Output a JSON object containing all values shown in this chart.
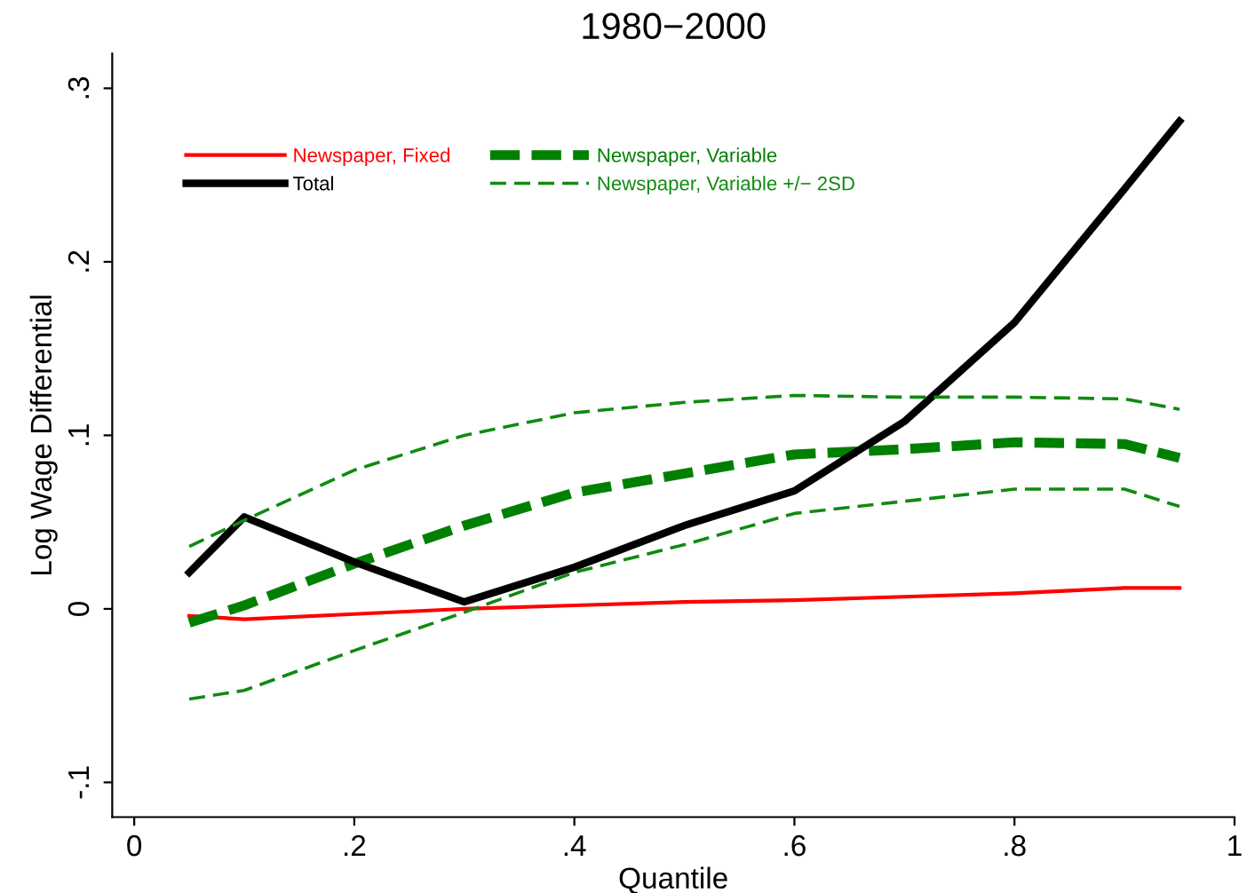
{
  "chart_data": {
    "type": "line",
    "title": "1980−2000",
    "xlabel": "Quantile",
    "ylabel": "Log Wage Differential",
    "x": [
      0.05,
      0.1,
      0.2,
      0.3,
      0.4,
      0.5,
      0.6,
      0.7,
      0.8,
      0.9,
      0.95
    ],
    "series": [
      {
        "name": "Newspaper, Fixed",
        "color": "#ff0000",
        "line_style": "solid",
        "values": [
          -0.004,
          -0.006,
          -0.003,
          0.0,
          0.002,
          0.004,
          0.005,
          0.007,
          0.009,
          0.012,
          0.012
        ]
      },
      {
        "name": "Newspaper, Variable",
        "color": "#008000",
        "line_style": "dashed",
        "values": [
          -0.008,
          0.002,
          0.026,
          0.048,
          0.067,
          0.078,
          0.089,
          0.092,
          0.096,
          0.095,
          0.087
        ]
      },
      {
        "name": "Total",
        "color": "#000000",
        "line_style": "solid",
        "values": [
          0.021,
          0.053,
          0.027,
          0.004,
          0.024,
          0.048,
          0.068,
          0.108,
          0.165,
          0.242,
          0.281
        ]
      },
      {
        "name": "Newspaper, Variable +/− 2SD",
        "color": "#108a10",
        "line_style": "dashed",
        "values": [
          0.036,
          0.051,
          0.08,
          0.1,
          0.113,
          0.119,
          0.123,
          0.122,
          0.122,
          0.121,
          0.115
        ]
      },
      {
        "color": "#108a10",
        "line_style": "dashed",
        "values": [
          -0.052,
          -0.047,
          -0.024,
          -0.002,
          0.021,
          0.037,
          0.055,
          0.062,
          0.069,
          0.069,
          0.059
        ]
      }
    ],
    "xlim": [
      -0.02,
      1.0
    ],
    "ylim": [
      -0.12,
      0.32
    ],
    "xticks": [
      0,
      {
        "value": 0.2,
        "label": ".2"
      },
      {
        "value": 0.4,
        "label": ".4"
      },
      {
        "value": 0.6,
        "label": ".6"
      },
      {
        "value": 0.8,
        "label": ".8"
      },
      1
    ],
    "yticks": [
      {
        "value": -0.1,
        "label": "-.1"
      },
      0,
      {
        "value": 0.1,
        "label": ".1"
      },
      {
        "value": 0.2,
        "label": ".2"
      },
      {
        "value": 0.3,
        "label": ".3"
      }
    ],
    "grid": false,
    "legend": "top left",
    "marker": "none"
  }
}
